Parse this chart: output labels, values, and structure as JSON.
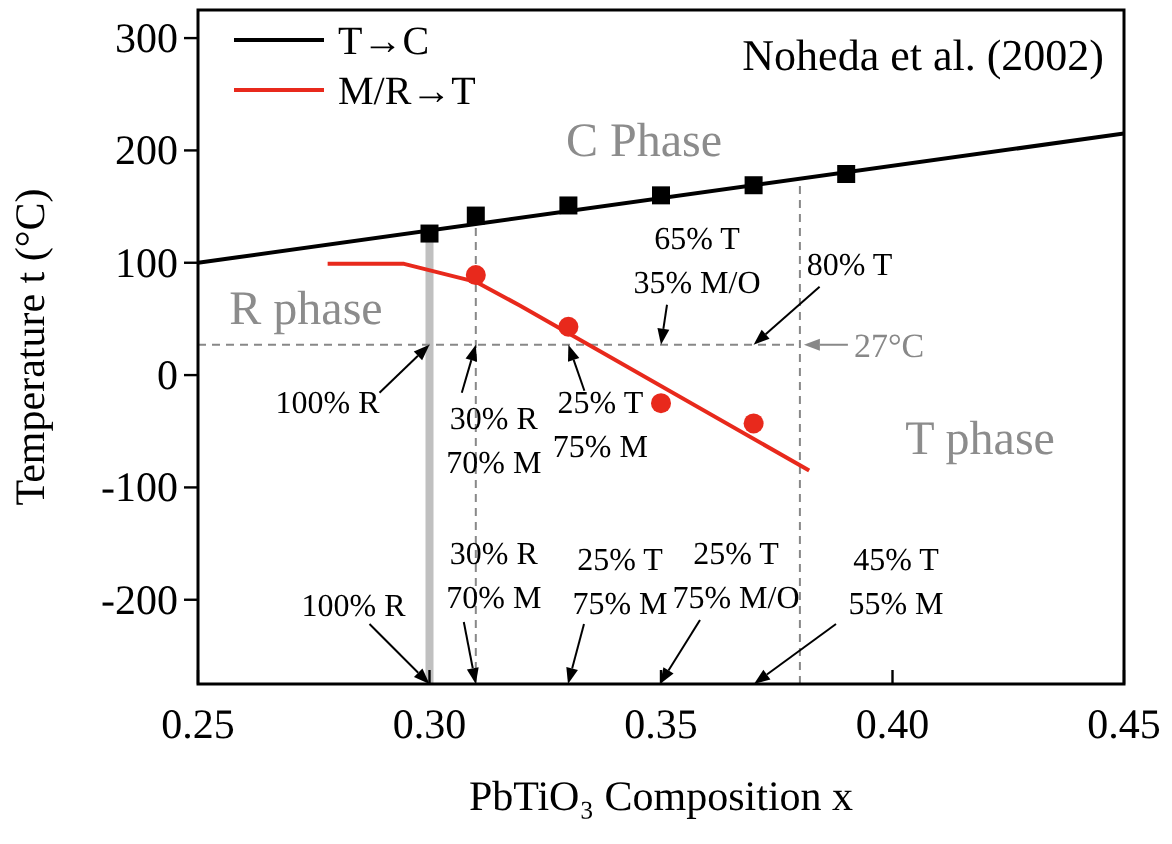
{
  "chart_data": {
    "type": "line",
    "xlabel": "PbTiO₃ Composition x",
    "ylabel": "Temperature t (°C)",
    "xlim": [
      0.25,
      0.45
    ],
    "xticks": [
      0.25,
      {
        "value": 0.3,
        "label": "0.30"
      },
      0.35,
      {
        "value": 0.4,
        "label": "0.40"
      },
      0.45
    ],
    "ylim": [
      -275,
      325
    ],
    "yticks": [
      -200,
      -100,
      0,
      100,
      200,
      300
    ],
    "grid": false,
    "legend": "top left",
    "series": [
      {
        "name": "T→C",
        "color": "#000000",
        "marker": "none",
        "x": [
          0.25,
          0.45
        ],
        "values": [
          100,
          215
        ]
      },
      {
        "name": "M/R→T",
        "color": "#e8291c",
        "marker": "none",
        "x": [
          0.278,
          0.2945,
          0.31,
          0.3195,
          0.382
        ],
        "values": [
          99,
          99,
          83,
          62,
          -85
        ]
      },
      {
        "type": "scatter",
        "color": "#000000",
        "marker": "square",
        "x": [
          0.3,
          0.31,
          0.33,
          0.35,
          0.37,
          0.39
        ],
        "values": [
          126,
          142,
          151,
          160,
          169,
          179
        ]
      },
      {
        "type": "scatter",
        "color": "#e8291c",
        "marker": "circle",
        "x": [
          0.31,
          0.33,
          0.35,
          0.37
        ],
        "values": [
          89,
          43,
          -25,
          -43
        ]
      }
    ],
    "ref_lines": [
      {
        "axis": "x",
        "value": 0.3,
        "color": "#c0c0c0",
        "line_style": "solid"
      },
      {
        "axis": "x",
        "value": 0.31,
        "color": "#888888",
        "line_style": "dashed"
      },
      {
        "axis": "x",
        "value": 0.38,
        "color": "#888888",
        "line_style": "dashed"
      },
      {
        "axis": "y",
        "value": 27,
        "label": "27°C",
        "color": "#888888",
        "line_style": "dashed"
      }
    ],
    "annotations": [
      "Noheda et al. (2002)",
      "C Phase",
      "R phase",
      "T phase",
      {
        "text": "65% T\n35% M/O",
        "x": 0.35,
        "y": 27
      },
      {
        "text": "80% T",
        "x": 0.37,
        "y": 27
      },
      {
        "text": "100% R",
        "x": 0.3,
        "y": 27
      },
      {
        "text": "30% R\n70% M",
        "x": 0.31,
        "y": 27
      },
      {
        "text": "25% T\n75% M",
        "x": 0.33,
        "y": 27
      },
      {
        "text": "100% R",
        "x": 0.3,
        "y": -275
      },
      {
        "text": "30% R\n70% M",
        "x": 0.31,
        "y": -275
      },
      "25% T\n75% M",
      "25% T\n75% M/O",
      "45% T\n55% M"
    ]
  }
}
